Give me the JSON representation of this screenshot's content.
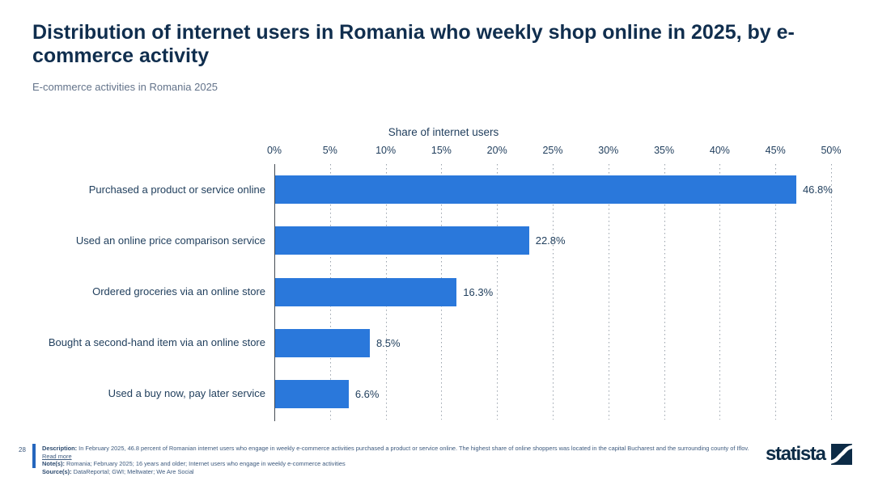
{
  "header": {
    "title": "Distribution of internet users in Romania who weekly shop online in 2025, by e-commerce activity",
    "subtitle": "E-commerce activities in Romania 2025"
  },
  "chart_data": {
    "type": "bar",
    "orientation": "horizontal",
    "axis_title": "Share of internet users",
    "categories": [
      "Purchased a product or service online",
      "Used an online price comparison service",
      "Ordered groceries via an online store",
      "Bought a second-hand item via an online store",
      "Used a buy now, pay later service"
    ],
    "values": [
      46.8,
      22.8,
      16.3,
      8.5,
      6.6
    ],
    "value_labels": [
      "46.8%",
      "22.8%",
      "16.3%",
      "8.5%",
      "6.6%"
    ],
    "xlim": [
      0,
      50
    ],
    "tick_labels": [
      "0%",
      "5%",
      "10%",
      "15%",
      "20%",
      "25%",
      "30%",
      "35%",
      "40%",
      "45%",
      "50%"
    ],
    "grid": "dotted-vertical",
    "legend": "none"
  },
  "colors": {
    "bar": "#2A78DB",
    "accent_bar": "#2566BD",
    "brand_navy": "#0C2B46",
    "title_text": "#102E4E",
    "muted_text": "#63738A"
  },
  "footer": {
    "page_number": "28",
    "description_label": "Description:",
    "description": " In February 2025, 46.8 percent of Romanian internet users who engage in weekly e-commerce activities purchased a product or service online. The highest share of online shoppers was located in the capital Bucharest and the surrounding county of Iflov.",
    "read_more": "Read more",
    "notes_label": "Note(s):",
    "notes": " Romania; February 2025; 16 years and older; Internet users who engage in weekly e-commerce activities",
    "sources_label": "Source(s):",
    "sources": " DataReportal; GWI; Meltwater; We Are Social",
    "brand": "statista"
  }
}
